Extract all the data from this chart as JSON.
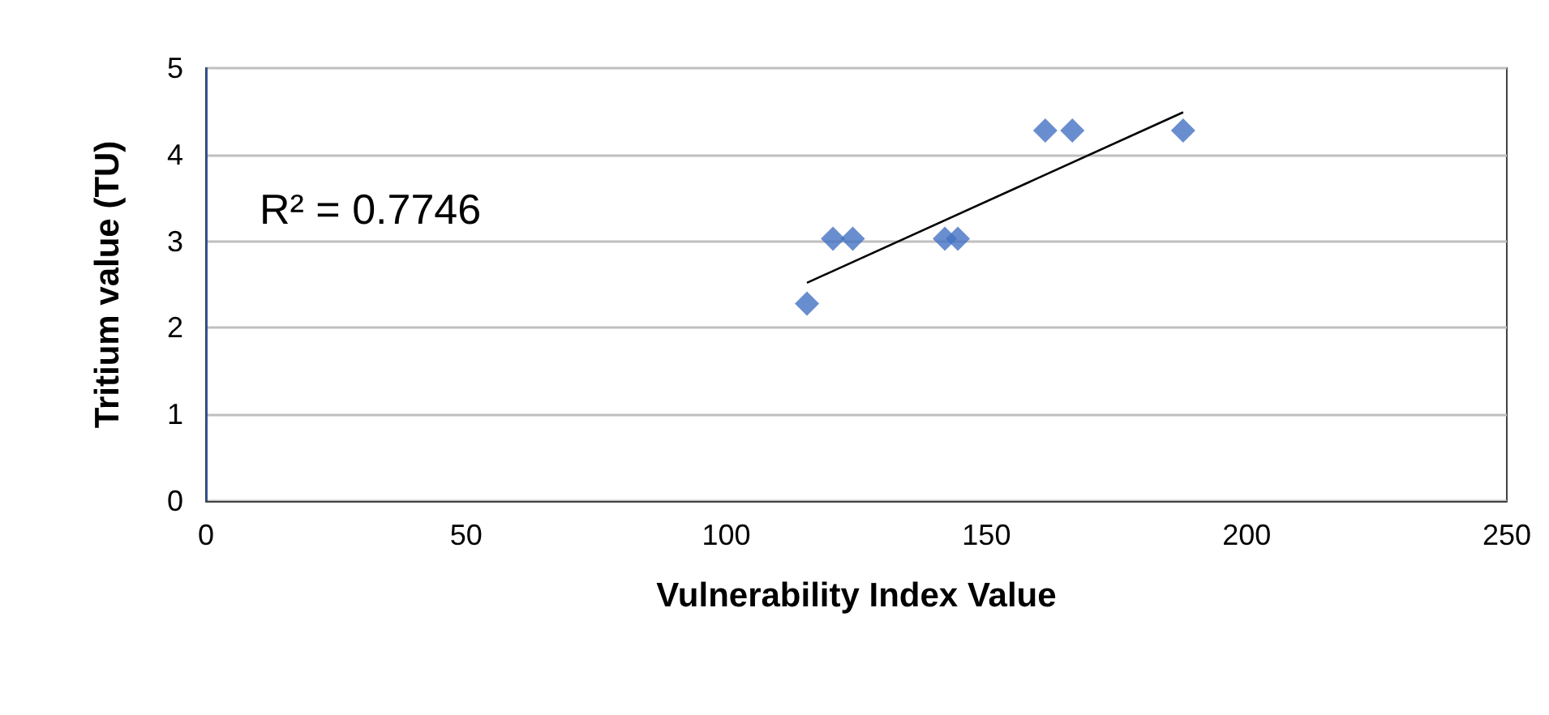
{
  "chart_data": {
    "type": "scatter",
    "xlabel": "Vulnerability Index Value",
    "ylabel": "Tritium value (TU)",
    "annotations": [
      "R² = 0.7746"
    ],
    "xlim": [
      0,
      250
    ],
    "xticks": [
      0,
      50,
      100,
      150,
      200,
      250
    ],
    "ylim": [
      0,
      5
    ],
    "yticks": [
      0,
      1,
      2,
      3,
      4,
      5
    ],
    "grid": "y",
    "marker": "diamond",
    "series": [
      {
        "color": "#4472c4",
        "x": [
          115.5,
          120.5,
          124.3,
          142,
          144.5,
          161.3,
          166.5,
          187.8
        ],
        "values": [
          2.28,
          3.03,
          3.03,
          3.03,
          3.03,
          4.28,
          4.28,
          4.28
        ]
      },
      {
        "type": "line",
        "color": "#000000",
        "marker": "none",
        "x": [
          115.5,
          187.8
        ],
        "values": [
          2.52,
          4.49
        ]
      }
    ]
  }
}
